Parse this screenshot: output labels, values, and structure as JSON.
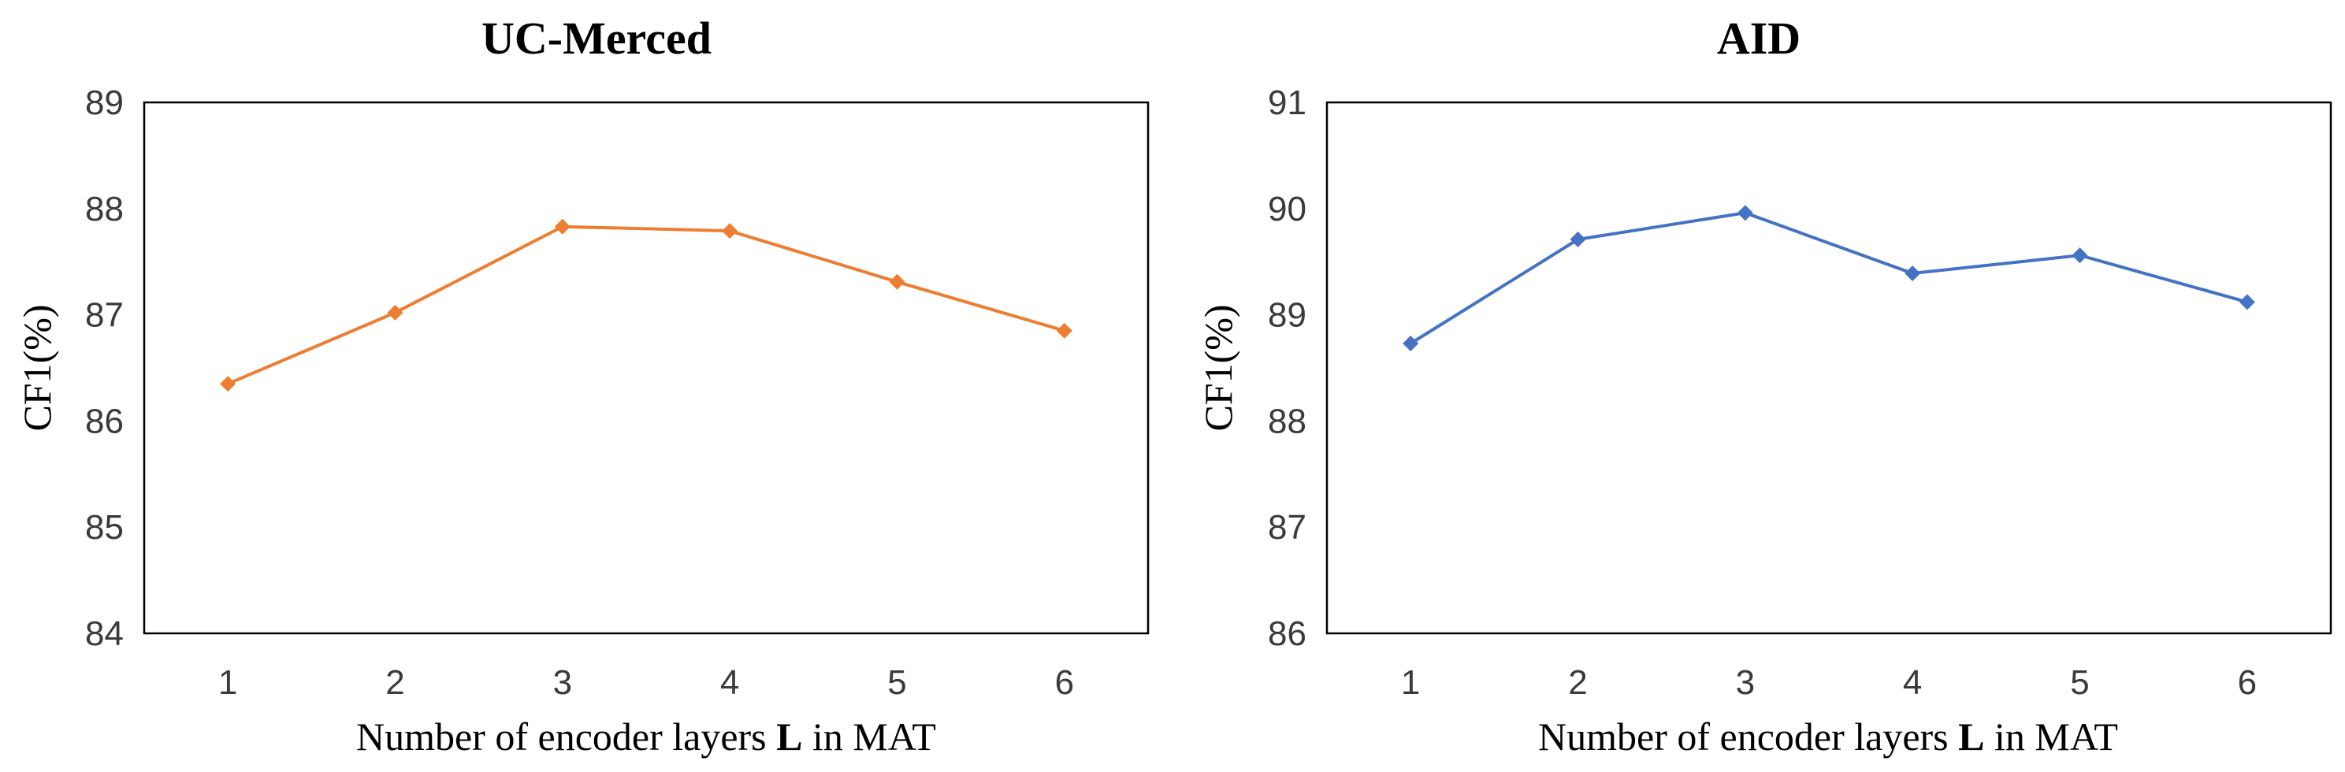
{
  "chart_data": [
    {
      "type": "line",
      "title": "UC-Merced",
      "xlabel_prefix": "Number of encoder layers ",
      "xlabel_bold": "L",
      "xlabel_suffix": " in MAT",
      "ylabel": "CF1(%)",
      "categories": [
        "1",
        "2",
        "3",
        "4",
        "5",
        "6"
      ],
      "x": [
        1,
        2,
        3,
        4,
        5,
        6
      ],
      "yticks": [
        84,
        85,
        86,
        87,
        88,
        89
      ],
      "ylim": [
        84,
        89
      ],
      "grid": false,
      "series": [
        {
          "name": "UC-Merced",
          "color": "#ed7d31",
          "marker": "diamond",
          "values": [
            86.35,
            87.02,
            87.83,
            87.79,
            87.31,
            86.85
          ]
        }
      ]
    },
    {
      "type": "line",
      "title": "AID",
      "xlabel_prefix": "Number of encoder layers ",
      "xlabel_bold": "L",
      "xlabel_suffix": " in MAT",
      "ylabel": "CF1(%)",
      "categories": [
        "1",
        "2",
        "3",
        "4",
        "5",
        "6"
      ],
      "x": [
        1,
        2,
        3,
        4,
        5,
        6
      ],
      "yticks": [
        86,
        87,
        88,
        89,
        90,
        91
      ],
      "ylim": [
        86,
        91
      ],
      "grid": false,
      "series": [
        {
          "name": "AID",
          "color": "#4472c4",
          "marker": "diamond",
          "values": [
            88.73,
            89.71,
            89.96,
            89.39,
            89.56,
            89.12
          ]
        }
      ]
    }
  ]
}
